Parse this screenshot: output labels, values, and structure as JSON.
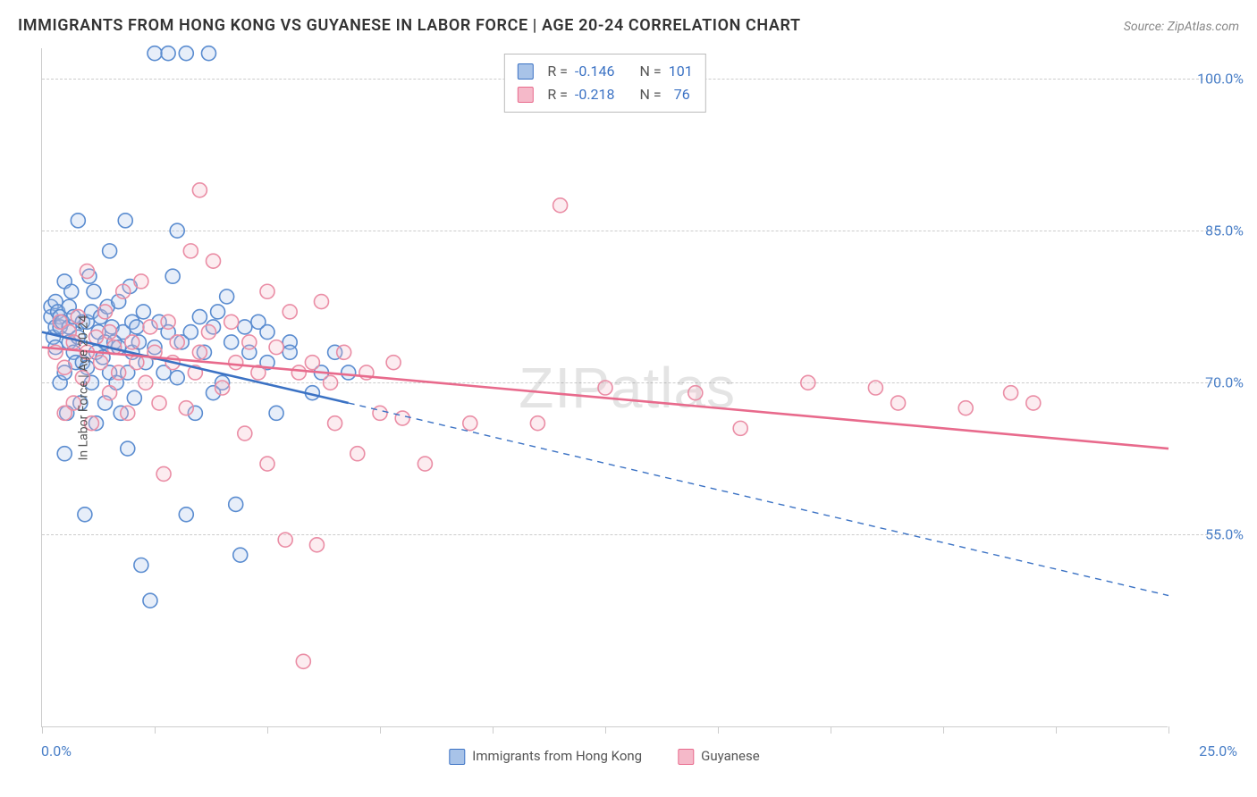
{
  "header": {
    "title": "IMMIGRANTS FROM HONG KONG VS GUYANESE IN LABOR FORCE | AGE 20-24 CORRELATION CHART",
    "source_prefix": "Source: ",
    "source_name": "ZipAtlas.com"
  },
  "watermark": {
    "part1": "ZIP",
    "part2": "atlas"
  },
  "chart": {
    "type": "scatter",
    "background_color": "#ffffff",
    "grid_color": "#cccccc",
    "axis_color": "#cccccc",
    "tick_label_color": "#4a7fc7",
    "yaxis_label": "In Labor Force | Age 20-24",
    "xlim": [
      0,
      25
    ],
    "ylim": [
      36,
      103
    ],
    "xtick_positions": [
      0,
      2.5,
      5,
      7.5,
      10,
      12.5,
      15,
      17.5,
      20,
      22.5,
      25
    ],
    "xtick_labels": {
      "left": "0.0%",
      "right": "25.0%"
    },
    "ytick_positions": [
      55,
      70,
      85,
      100
    ],
    "ytick_labels": [
      "55.0%",
      "70.0%",
      "85.0%",
      "100.0%"
    ],
    "marker_radius": 8,
    "marker_stroke_width": 1.6,
    "marker_fill_opacity": 0.28,
    "line_stroke_width": 2.6
  },
  "series": [
    {
      "name": "Immigrants from Hong Kong",
      "stroke": "#3b72c4",
      "fill": "#a8c3e8",
      "marker_stroke": "#5a8cd0",
      "r_value": "-0.146",
      "n_value": "101",
      "regression": {
        "x1": 0,
        "y1": 75.0,
        "x2": 6.8,
        "y2": 68.0
      },
      "extrapolation": {
        "x1": 6.8,
        "y1": 68.0,
        "x2": 25,
        "y2": 49.0
      },
      "points": [
        [
          0.2,
          76.5
        ],
        [
          0.2,
          77.5
        ],
        [
          0.25,
          74.5
        ],
        [
          0.3,
          78.0
        ],
        [
          0.3,
          73.5
        ],
        [
          0.3,
          75.5
        ],
        [
          0.35,
          77.0
        ],
        [
          0.4,
          76.5
        ],
        [
          0.4,
          70.0
        ],
        [
          0.4,
          75.5
        ],
        [
          0.45,
          76.0
        ],
        [
          0.5,
          80.0
        ],
        [
          0.5,
          71.0
        ],
        [
          0.5,
          63.0
        ],
        [
          0.55,
          67.0
        ],
        [
          0.6,
          77.5
        ],
        [
          0.6,
          74.0
        ],
        [
          0.6,
          75.5
        ],
        [
          0.65,
          79.0
        ],
        [
          0.7,
          73.0
        ],
        [
          0.7,
          76.5
        ],
        [
          0.75,
          72.0
        ],
        [
          0.8,
          86.0
        ],
        [
          0.8,
          74.5
        ],
        [
          0.85,
          68.0
        ],
        [
          0.9,
          76.0
        ],
        [
          0.9,
          72.0
        ],
        [
          0.95,
          57.0
        ],
        [
          1.0,
          76.0
        ],
        [
          1.0,
          71.5
        ],
        [
          1.05,
          80.5
        ],
        [
          1.1,
          70.0
        ],
        [
          1.1,
          77.0
        ],
        [
          1.15,
          79.0
        ],
        [
          1.2,
          66.0
        ],
        [
          1.2,
          73.0
        ],
        [
          1.25,
          75.0
        ],
        [
          1.3,
          76.5
        ],
        [
          1.35,
          72.5
        ],
        [
          1.4,
          68.0
        ],
        [
          1.4,
          74.0
        ],
        [
          1.45,
          77.5
        ],
        [
          1.5,
          83.0
        ],
        [
          1.5,
          71.0
        ],
        [
          1.55,
          75.5
        ],
        [
          1.6,
          74.0
        ],
        [
          1.65,
          70.0
        ],
        [
          1.7,
          78.0
        ],
        [
          1.7,
          73.5
        ],
        [
          1.75,
          67.0
        ],
        [
          1.8,
          75.0
        ],
        [
          1.85,
          86.0
        ],
        [
          1.9,
          63.5
        ],
        [
          1.9,
          71.0
        ],
        [
          1.95,
          79.5
        ],
        [
          2.0,
          73.0
        ],
        [
          2.0,
          76.0
        ],
        [
          2.05,
          68.5
        ],
        [
          2.1,
          75.5
        ],
        [
          2.15,
          74.0
        ],
        [
          2.2,
          52.0
        ],
        [
          2.25,
          77.0
        ],
        [
          2.3,
          72.0
        ],
        [
          2.4,
          48.5
        ],
        [
          2.5,
          102.5
        ],
        [
          2.5,
          73.5
        ],
        [
          2.6,
          76.0
        ],
        [
          2.7,
          71.0
        ],
        [
          2.8,
          102.5
        ],
        [
          2.8,
          75.0
        ],
        [
          2.9,
          80.5
        ],
        [
          3.0,
          85.0
        ],
        [
          3.0,
          70.5
        ],
        [
          3.1,
          74.0
        ],
        [
          3.2,
          102.5
        ],
        [
          3.2,
          57.0
        ],
        [
          3.3,
          75.0
        ],
        [
          3.4,
          67.0
        ],
        [
          3.5,
          76.5
        ],
        [
          3.6,
          73.0
        ],
        [
          3.7,
          102.5
        ],
        [
          3.8,
          69.0
        ],
        [
          3.8,
          75.5
        ],
        [
          3.9,
          77.0
        ],
        [
          4.0,
          70.0
        ],
        [
          4.1,
          78.5
        ],
        [
          4.2,
          74.0
        ],
        [
          4.3,
          58.0
        ],
        [
          4.4,
          53.0
        ],
        [
          4.5,
          75.5
        ],
        [
          4.6,
          73.0
        ],
        [
          4.8,
          76.0
        ],
        [
          5.0,
          75.0
        ],
        [
          5.0,
          72.0
        ],
        [
          5.2,
          67.0
        ],
        [
          5.5,
          74.0
        ],
        [
          5.5,
          73.0
        ],
        [
          6.0,
          69.0
        ],
        [
          6.2,
          71.0
        ],
        [
          6.5,
          73.0
        ],
        [
          6.8,
          71.0
        ]
      ]
    },
    {
      "name": "Guyanese",
      "stroke": "#e86a8c",
      "fill": "#f5b9c9",
      "marker_stroke": "#ea8da5",
      "r_value": "-0.218",
      "n_value": "76",
      "regression": {
        "x1": 0,
        "y1": 73.5,
        "x2": 25,
        "y2": 63.5
      },
      "extrapolation": null,
      "points": [
        [
          0.3,
          73.0
        ],
        [
          0.4,
          76.0
        ],
        [
          0.5,
          71.5
        ],
        [
          0.5,
          67.0
        ],
        [
          0.6,
          75.0
        ],
        [
          0.7,
          74.0
        ],
        [
          0.7,
          68.0
        ],
        [
          0.8,
          76.5
        ],
        [
          0.9,
          70.5
        ],
        [
          1.0,
          81.0
        ],
        [
          1.0,
          73.0
        ],
        [
          1.1,
          66.0
        ],
        [
          1.2,
          74.5
        ],
        [
          1.3,
          72.0
        ],
        [
          1.4,
          77.0
        ],
        [
          1.5,
          69.0
        ],
        [
          1.5,
          75.0
        ],
        [
          1.6,
          73.5
        ],
        [
          1.7,
          71.0
        ],
        [
          1.8,
          79.0
        ],
        [
          1.9,
          67.0
        ],
        [
          2.0,
          74.0
        ],
        [
          2.1,
          72.0
        ],
        [
          2.2,
          80.0
        ],
        [
          2.3,
          70.0
        ],
        [
          2.4,
          75.5
        ],
        [
          2.5,
          73.0
        ],
        [
          2.6,
          68.0
        ],
        [
          2.7,
          61.0
        ],
        [
          2.8,
          76.0
        ],
        [
          2.9,
          72.0
        ],
        [
          3.0,
          74.0
        ],
        [
          3.2,
          67.5
        ],
        [
          3.3,
          83.0
        ],
        [
          3.4,
          71.0
        ],
        [
          3.5,
          89.0
        ],
        [
          3.5,
          73.0
        ],
        [
          3.7,
          75.0
        ],
        [
          3.8,
          82.0
        ],
        [
          4.0,
          69.5
        ],
        [
          4.2,
          76.0
        ],
        [
          4.3,
          72.0
        ],
        [
          4.5,
          65.0
        ],
        [
          4.6,
          74.0
        ],
        [
          4.8,
          71.0
        ],
        [
          5.0,
          79.0
        ],
        [
          5.0,
          62.0
        ],
        [
          5.2,
          73.5
        ],
        [
          5.4,
          54.5
        ],
        [
          5.5,
          77.0
        ],
        [
          5.7,
          71.0
        ],
        [
          5.8,
          42.5
        ],
        [
          6.0,
          72.0
        ],
        [
          6.1,
          54.0
        ],
        [
          6.2,
          78.0
        ],
        [
          6.4,
          70.0
        ],
        [
          6.5,
          66.0
        ],
        [
          6.7,
          73.0
        ],
        [
          7.0,
          63.0
        ],
        [
          7.2,
          71.0
        ],
        [
          7.5,
          67.0
        ],
        [
          7.8,
          72.0
        ],
        [
          8.0,
          66.5
        ],
        [
          8.5,
          62.0
        ],
        [
          9.5,
          66.0
        ],
        [
          11.0,
          66.0
        ],
        [
          11.5,
          87.5
        ],
        [
          12.5,
          69.5
        ],
        [
          14.5,
          69.0
        ],
        [
          15.5,
          65.5
        ],
        [
          17.0,
          70.0
        ],
        [
          18.5,
          69.5
        ],
        [
          19.0,
          68.0
        ],
        [
          20.5,
          67.5
        ],
        [
          21.5,
          69.0
        ],
        [
          22.0,
          68.0
        ]
      ]
    }
  ],
  "legend": {
    "r_label": "R =",
    "n_label": "N ="
  }
}
